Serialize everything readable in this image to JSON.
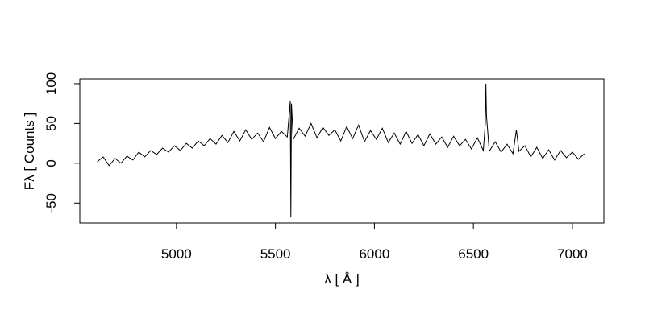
{
  "chart_data": {
    "type": "line",
    "x_label": "λ [ Å ]",
    "y_label": "Fλ [ Counts ]",
    "xlim": [
      4512,
      7159
    ],
    "ylim": [
      -75,
      106
    ],
    "xticks": [
      5000,
      5500,
      6000,
      6500,
      7000
    ],
    "yticks": [
      -50,
      0,
      50,
      100
    ],
    "color": "#000000",
    "x": [
      4600,
      4630,
      4660,
      4690,
      4720,
      4750,
      4780,
      4810,
      4840,
      4870,
      4900,
      4930,
      4960,
      4990,
      5020,
      5050,
      5080,
      5110,
      5140,
      5170,
      5200,
      5230,
      5260,
      5290,
      5320,
      5350,
      5380,
      5410,
      5440,
      5470,
      5500,
      5530,
      5560,
      5575,
      5578,
      5581,
      5590,
      5620,
      5650,
      5680,
      5710,
      5740,
      5770,
      5800,
      5830,
      5860,
      5890,
      5920,
      5950,
      5980,
      6010,
      6040,
      6070,
      6100,
      6130,
      6160,
      6190,
      6220,
      6250,
      6280,
      6310,
      6340,
      6370,
      6400,
      6430,
      6460,
      6490,
      6520,
      6550,
      6560,
      6563,
      6566,
      6580,
      6610,
      6640,
      6670,
      6700,
      6717,
      6730,
      6760,
      6790,
      6820,
      6850,
      6880,
      6910,
      6940,
      6970,
      7000,
      7030,
      7060
    ],
    "values": [
      2,
      8,
      -3,
      6,
      0,
      9,
      4,
      14,
      8,
      16,
      11,
      19,
      14,
      22,
      16,
      25,
      19,
      28,
      22,
      31,
      24,
      35,
      26,
      40,
      28,
      42,
      30,
      38,
      27,
      45,
      31,
      40,
      33,
      78,
      -68,
      75,
      30,
      44,
      34,
      50,
      32,
      45,
      35,
      42,
      28,
      46,
      31,
      48,
      27,
      41,
      30,
      44,
      26,
      38,
      24,
      40,
      25,
      36,
      22,
      37,
      24,
      33,
      20,
      34,
      22,
      30,
      18,
      32,
      16,
      50,
      100,
      60,
      15,
      27,
      14,
      24,
      12,
      42,
      15,
      22,
      8,
      20,
      6,
      17,
      4,
      16,
      7,
      14,
      5,
      12
    ]
  }
}
